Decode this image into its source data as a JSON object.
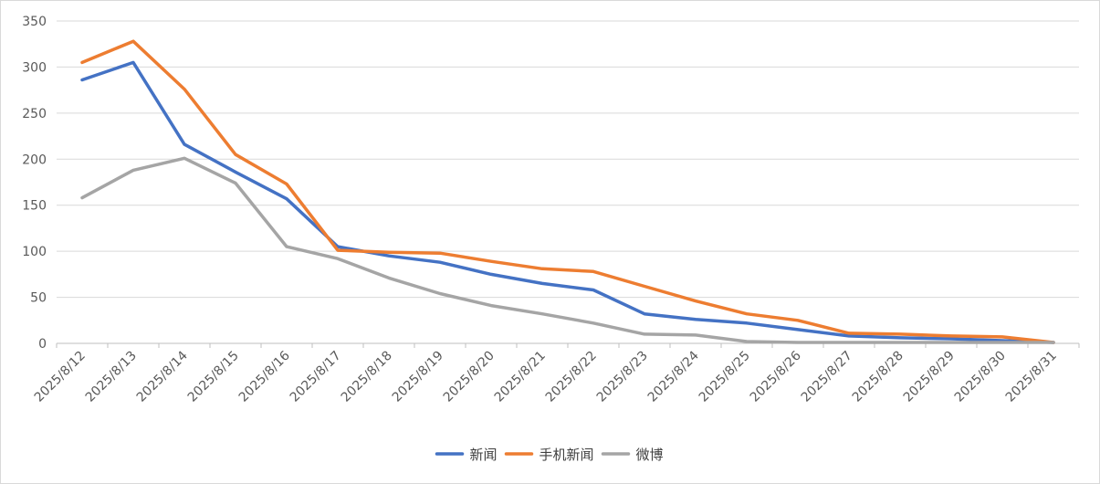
{
  "chart_data": {
    "type": "line",
    "title": "",
    "xlabel": "",
    "ylabel": "",
    "categories": [
      "2025/8/12",
      "2025/8/13",
      "2025/8/14",
      "2025/8/15",
      "2025/8/16",
      "2025/8/17",
      "2025/8/18",
      "2025/8/19",
      "2025/8/20",
      "2025/8/21",
      "2025/8/22",
      "2025/8/23",
      "2025/8/24",
      "2025/8/25",
      "2025/8/26",
      "2025/8/27",
      "2025/8/28",
      "2025/8/29",
      "2025/8/30",
      "2025/8/31"
    ],
    "ylim": [
      0,
      350
    ],
    "yticks": [
      0,
      50,
      100,
      150,
      200,
      250,
      300,
      350
    ],
    "grid": true,
    "legend_position": "bottom",
    "series": [
      {
        "name": "新闻",
        "color": "#4472C4",
        "values": [
          286,
          305,
          216,
          186,
          157,
          105,
          95,
          88,
          75,
          65,
          58,
          32,
          26,
          22,
          15,
          8,
          6,
          5,
          3,
          1
        ]
      },
      {
        "name": "手机新闻",
        "color": "#ED7D31",
        "values": [
          305,
          328,
          276,
          205,
          173,
          101,
          99,
          98,
          89,
          81,
          78,
          62,
          46,
          32,
          25,
          11,
          10,
          8,
          7,
          1
        ]
      },
      {
        "name": "微博",
        "color": "#A5A5A5",
        "values": [
          158,
          188,
          201,
          174,
          105,
          92,
          71,
          54,
          41,
          32,
          22,
          10,
          9,
          2,
          1,
          1,
          1,
          1,
          1,
          1
        ]
      }
    ]
  }
}
